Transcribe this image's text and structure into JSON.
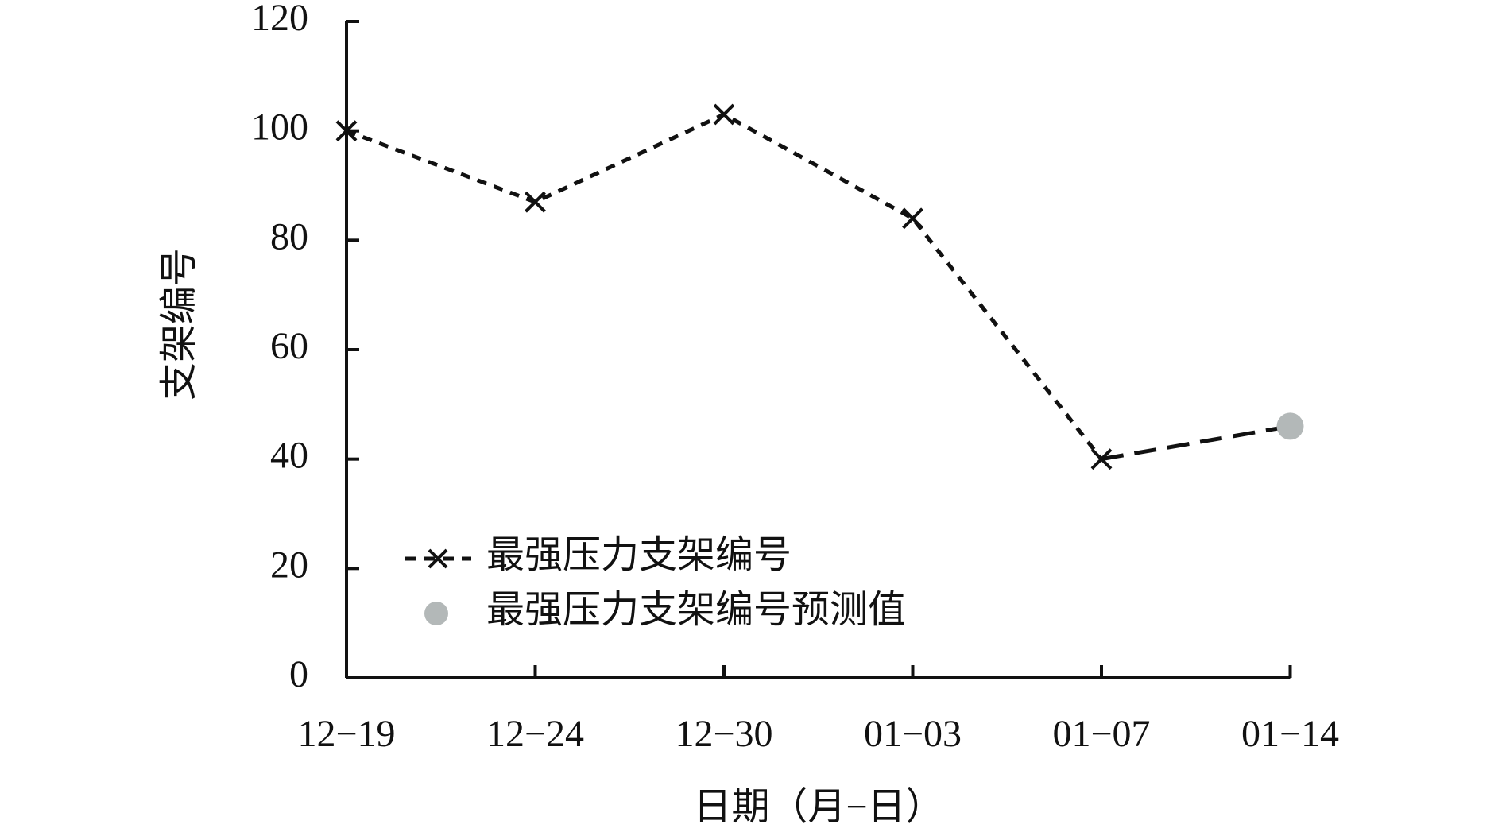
{
  "chart_data": {
    "type": "line",
    "y_label": "支架编号",
    "x_label": "日期（月−日）",
    "categories": [
      "12−19",
      "12−24",
      "12−30",
      "01−03",
      "01−07",
      "01−14"
    ],
    "series": [
      {
        "name": "最强压力支架编号",
        "color": "#111111",
        "marker": "x",
        "values": [
          100,
          87,
          103,
          84,
          40,
          null
        ]
      },
      {
        "name": "最强压力支架编号预测值",
        "color": "#b3b8b8",
        "marker": "circle",
        "values": [
          null,
          null,
          null,
          null,
          null,
          46
        ]
      }
    ],
    "ylim": [
      0,
      120
    ],
    "yticks": [
      0,
      20,
      40,
      60,
      80,
      100,
      120
    ],
    "grid": false
  }
}
